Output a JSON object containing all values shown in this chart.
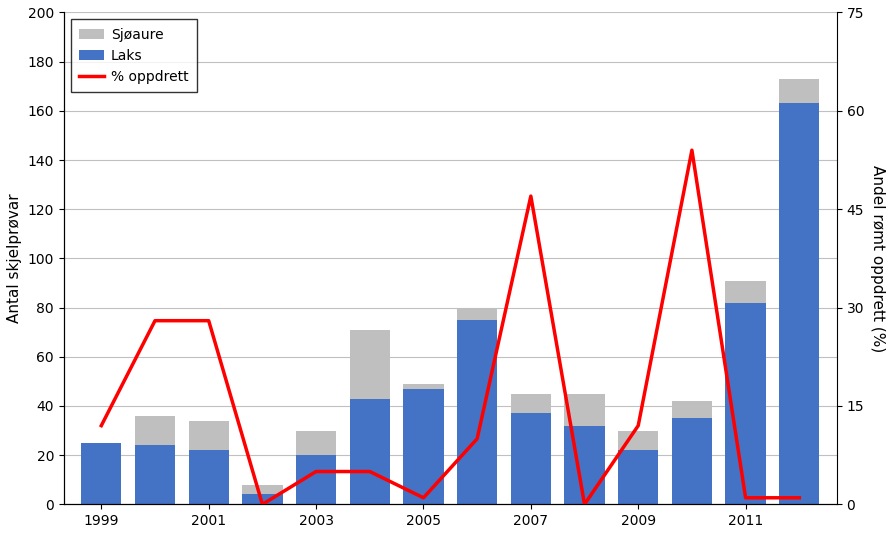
{
  "years": [
    1999,
    2000,
    2001,
    2002,
    2003,
    2004,
    2005,
    2006,
    2007,
    2008,
    2009,
    2010,
    2011,
    2012
  ],
  "laks": [
    25,
    24,
    22,
    4,
    20,
    43,
    47,
    75,
    37,
    32,
    22,
    35,
    82,
    163
  ],
  "sjoaure": [
    0,
    12,
    12,
    4,
    10,
    28,
    2,
    5,
    8,
    13,
    8,
    7,
    9,
    10
  ],
  "pct_oppdrett": [
    12,
    28,
    28,
    0,
    5,
    5,
    1,
    10,
    47,
    0,
    12,
    54,
    1,
    1
  ],
  "bar_color_laks": "#4472C4",
  "bar_color_sjoaure": "#BFBFBF",
  "line_color": "#FF0000",
  "ylabel_left": "Antal skjelprøvar",
  "ylabel_right": "Andel rømt oppdrett (%)",
  "ylim_left": [
    0,
    200
  ],
  "ylim_right": [
    0,
    75
  ],
  "yticks_left": [
    0,
    20,
    40,
    60,
    80,
    100,
    120,
    140,
    160,
    180,
    200
  ],
  "yticks_right": [
    0,
    15,
    30,
    45,
    60,
    75
  ],
  "xticks": [
    1999,
    2001,
    2003,
    2005,
    2007,
    2009,
    2011
  ],
  "legend_sjoaure": "Sjøaure",
  "legend_laks": "Laks",
  "legend_pct": "% oppdrett",
  "figsize": [
    8.92,
    5.35
  ],
  "dpi": 100,
  "bar_width": 0.75
}
